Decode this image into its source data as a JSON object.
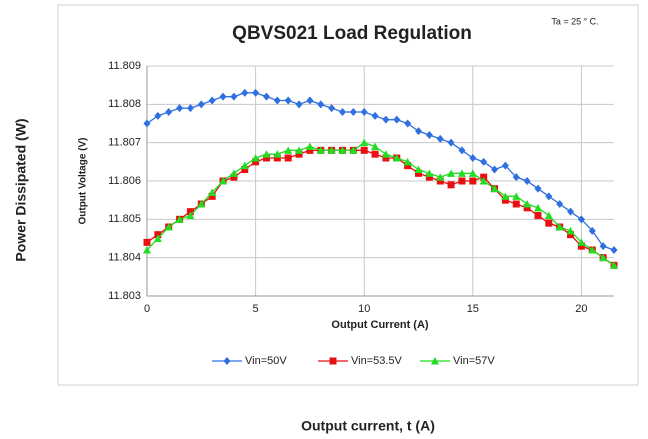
{
  "chart_data": {
    "type": "line",
    "title": "QBVS021 Load Regulation",
    "annotation": "Ta = 25 ° C.",
    "x_label": "Output Current (A)",
    "y_label": "Output Voltage (V)",
    "outer_y_label": "Power Dissipated  (W)",
    "outer_x_label": "Output current, t (A)",
    "x": [
      0,
      0.5,
      1,
      1.5,
      2,
      2.5,
      3,
      3.5,
      4,
      4.5,
      5,
      5.5,
      6,
      6.5,
      7,
      7.5,
      8,
      8.5,
      9,
      9.5,
      10,
      10.5,
      11,
      11.5,
      12,
      12.5,
      13,
      13.5,
      14,
      14.5,
      15,
      15.5,
      16,
      16.5,
      17,
      17.5,
      18,
      18.5,
      19,
      19.5,
      20,
      20.5,
      21,
      21.5
    ],
    "series": [
      {
        "name": "Vin=50V",
        "color": "#2f6fe0",
        "marker": "diamond",
        "values": [
          11.8075,
          11.8077,
          11.8078,
          11.8079,
          11.8079,
          11.808,
          11.8081,
          11.8082,
          11.8082,
          11.8083,
          11.8083,
          11.8082,
          11.8081,
          11.8081,
          11.808,
          11.8081,
          11.808,
          11.8079,
          11.8078,
          11.8078,
          11.8078,
          11.8077,
          11.8076,
          11.8076,
          11.8075,
          11.8073,
          11.8072,
          11.8071,
          11.807,
          11.8068,
          11.8066,
          11.8065,
          11.8063,
          11.8064,
          11.8061,
          11.806,
          11.8058,
          11.8056,
          11.8054,
          11.8052,
          11.805,
          11.8047,
          11.8043,
          11.8042
        ]
      },
      {
        "name": "Vin=53.5V",
        "color": "#e81010",
        "marker": "square",
        "values": [
          11.8044,
          11.8046,
          11.8048,
          11.805,
          11.8052,
          11.8054,
          11.8056,
          11.806,
          11.8061,
          11.8063,
          11.8065,
          11.8066,
          11.8066,
          11.8066,
          11.8067,
          11.8068,
          11.8068,
          11.8068,
          11.8068,
          11.8068,
          11.8068,
          11.8067,
          11.8066,
          11.8066,
          11.8064,
          11.8062,
          11.8061,
          11.806,
          11.8059,
          11.806,
          11.806,
          11.8061,
          11.8058,
          11.8055,
          11.8054,
          11.8053,
          11.8051,
          11.8049,
          11.8048,
          11.8046,
          11.8043,
          11.8042,
          11.804,
          11.8038
        ]
      },
      {
        "name": "Vin=57V",
        "color": "#22dd22",
        "marker": "triangle",
        "values": [
          11.8042,
          11.8045,
          11.8048,
          11.805,
          11.8051,
          11.8054,
          11.8057,
          11.806,
          11.8062,
          11.8064,
          11.8066,
          11.8067,
          11.8067,
          11.8068,
          11.8068,
          11.8069,
          11.8068,
          11.8068,
          11.8068,
          11.8068,
          11.807,
          11.8069,
          11.8067,
          11.8066,
          11.8065,
          11.8063,
          11.8062,
          11.8061,
          11.8062,
          11.8062,
          11.8062,
          11.806,
          11.8058,
          11.8056,
          11.8056,
          11.8054,
          11.8053,
          11.8051,
          11.8048,
          11.8047,
          11.8044,
          11.8042,
          11.804,
          11.8038
        ]
      }
    ],
    "xlim": [
      0,
      21.5
    ],
    "xticks": [
      0,
      5,
      10,
      15,
      20
    ],
    "ylim": [
      11.803,
      11.809
    ],
    "yticks": [
      11.803,
      11.804,
      11.805,
      11.806,
      11.807,
      11.808,
      11.809
    ],
    "grid": true,
    "legend": "bottom"
  }
}
